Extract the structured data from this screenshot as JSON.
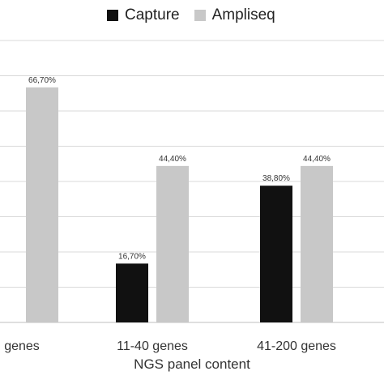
{
  "chart_data": {
    "type": "bar",
    "categories": [
      "genes",
      "11-40 genes",
      "41-200 genes"
    ],
    "series": [
      {
        "name": "Capture",
        "values": [
          null,
          16.7,
          38.8
        ],
        "labels": [
          "",
          "16,70%",
          "38,80%"
        ],
        "color": "#111111"
      },
      {
        "name": "Ampliseq",
        "values": [
          66.7,
          44.4,
          44.4
        ],
        "labels": [
          "66,70%",
          "44,40%",
          "44,40%"
        ],
        "color": "#c8c8c8"
      }
    ],
    "xlabel": "NGS panel content",
    "ylabel": "",
    "ylim": [
      0,
      80
    ],
    "grid": true,
    "legend_position": "top"
  }
}
